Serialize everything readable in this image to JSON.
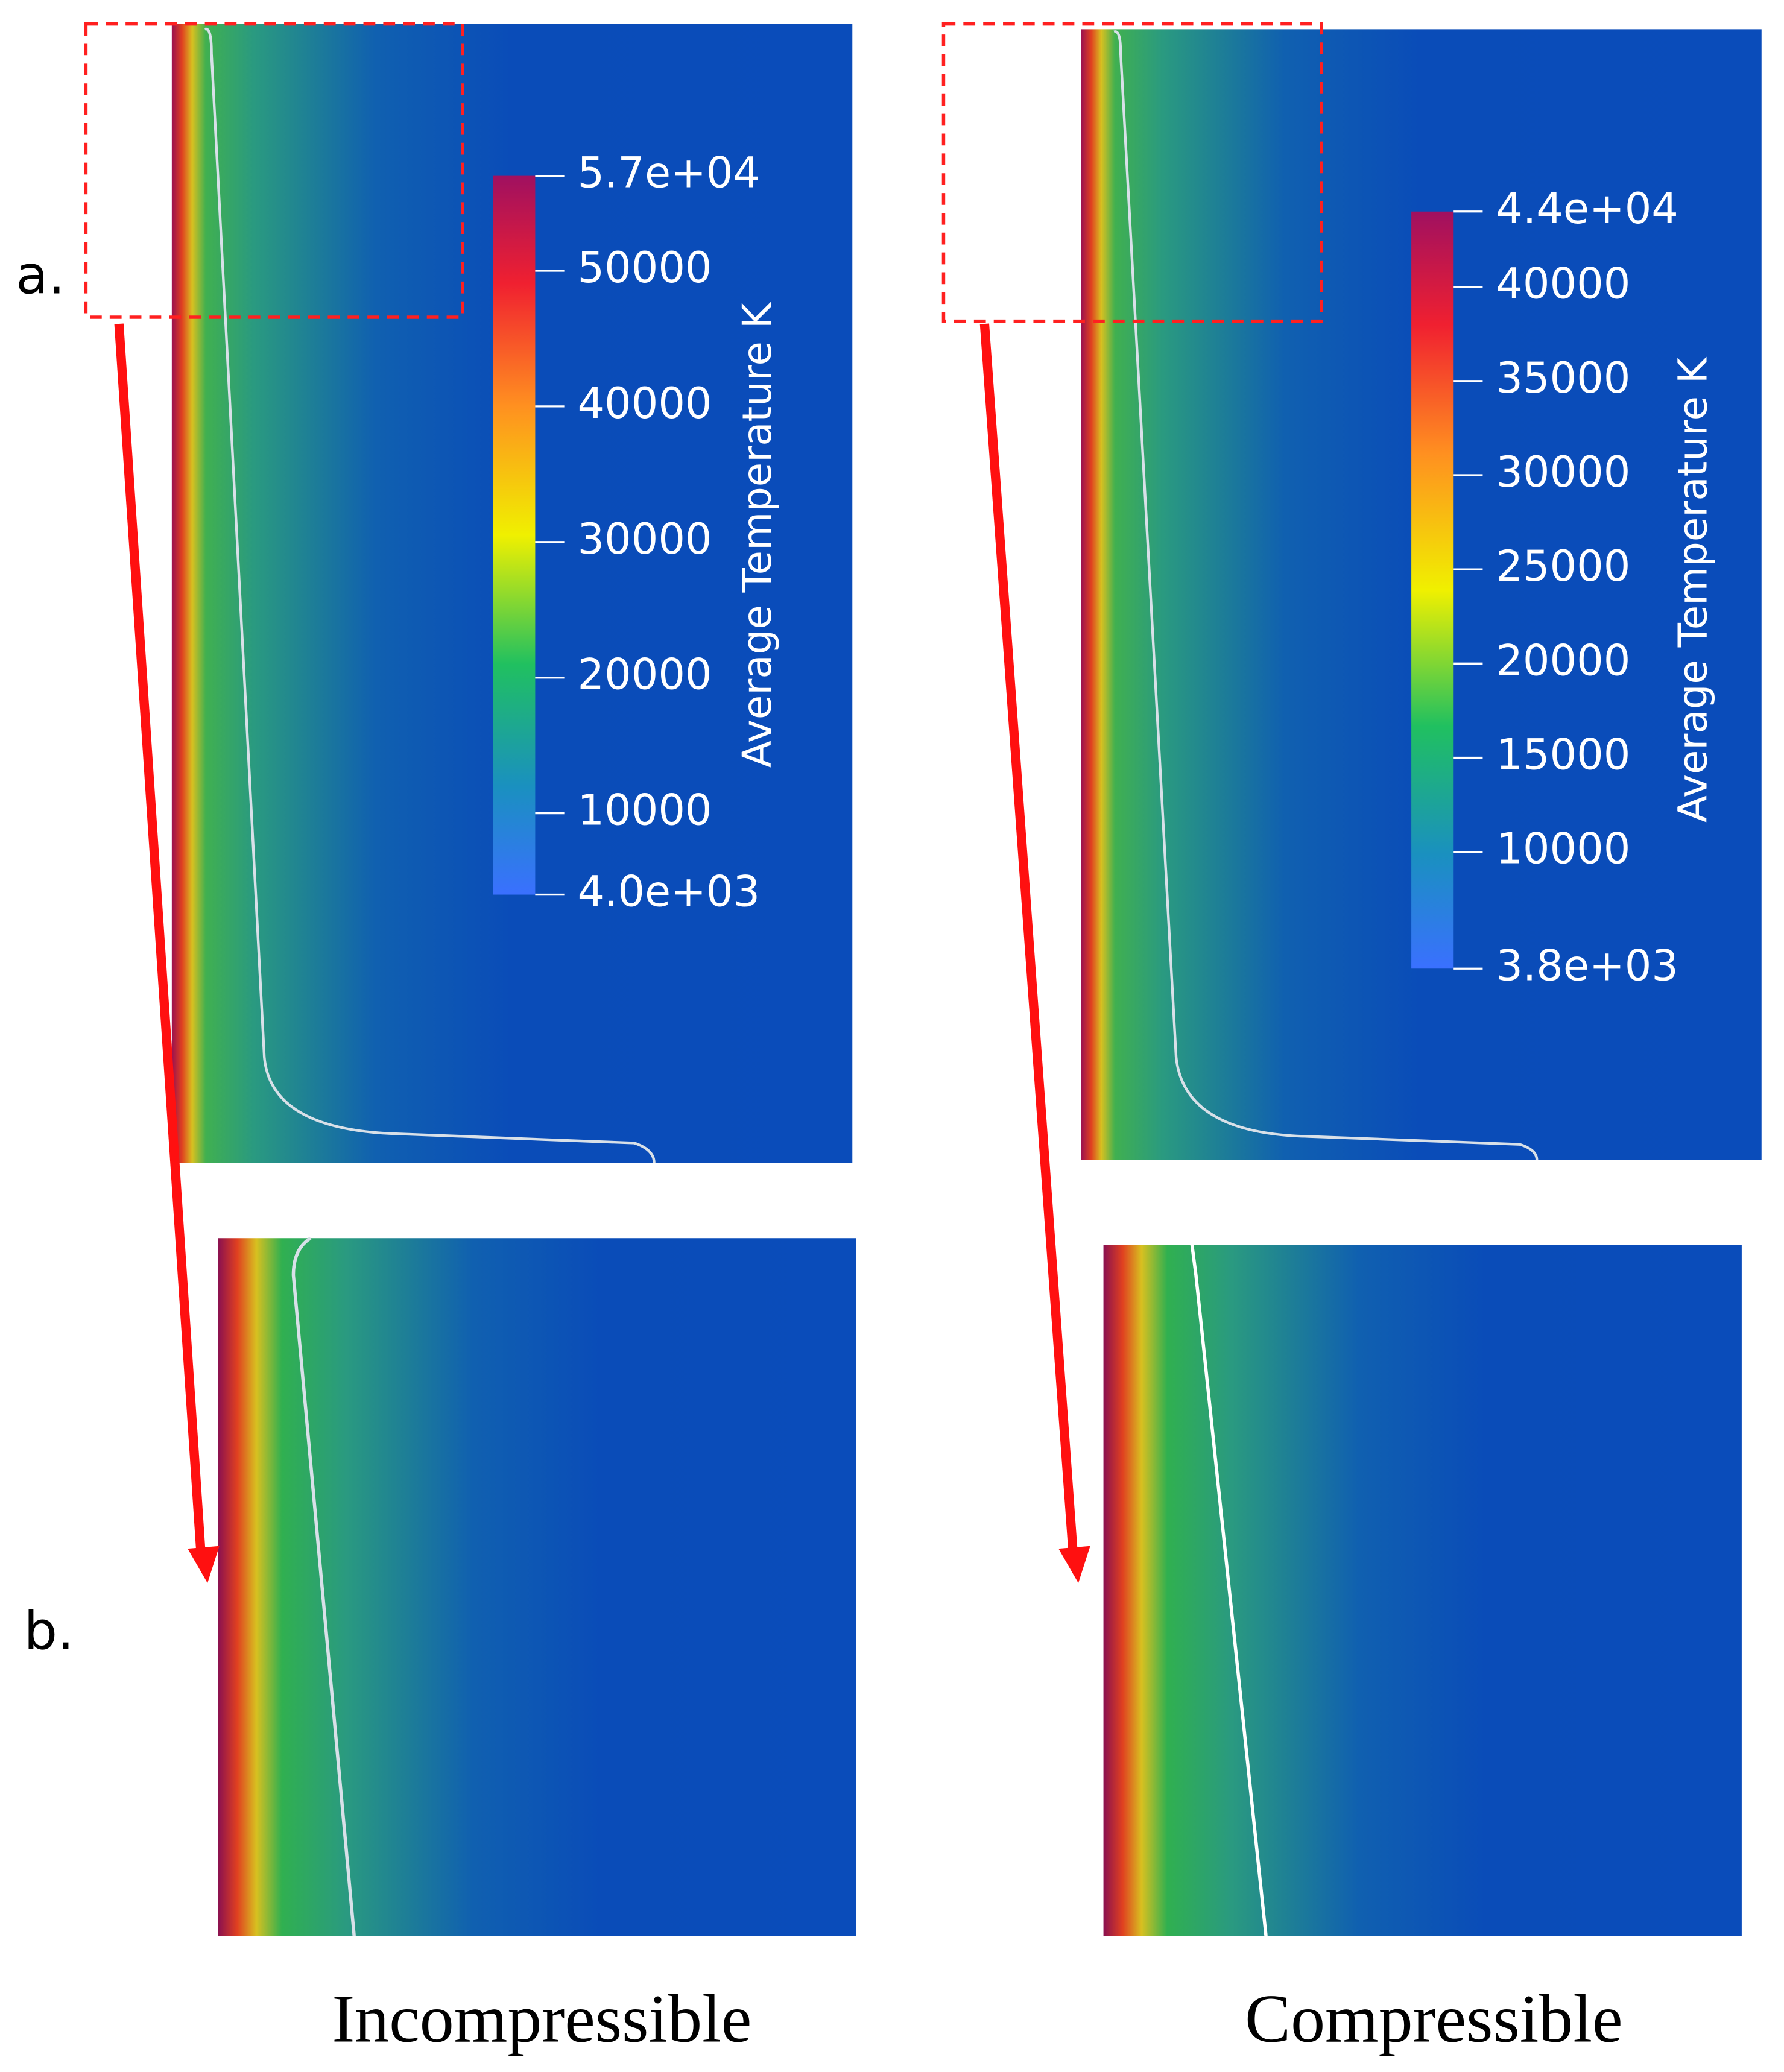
{
  "row_labels": [
    "a.",
    "b."
  ],
  "panels": [
    {
      "caption": "Incompressible",
      "colorbar": {
        "title": "Average Temperature K",
        "lim": [
          4000,
          57000
        ],
        "ticks": [
          {
            "value": 57000,
            "label": "5.7e+04"
          },
          50000,
          40000,
          30000,
          20000,
          10000,
          {
            "value": 4000,
            "label": "4.0e+03"
          }
        ]
      }
    },
    {
      "caption": "Compressible",
      "colorbar": {
        "title": "Average Temperature K",
        "lim": [
          3800,
          44000
        ],
        "ticks": [
          {
            "value": 44000,
            "label": "4.4e+04"
          },
          40000,
          35000,
          30000,
          25000,
          20000,
          15000,
          10000,
          {
            "value": 3800,
            "label": "3.8e+03"
          }
        ]
      }
    }
  ]
}
